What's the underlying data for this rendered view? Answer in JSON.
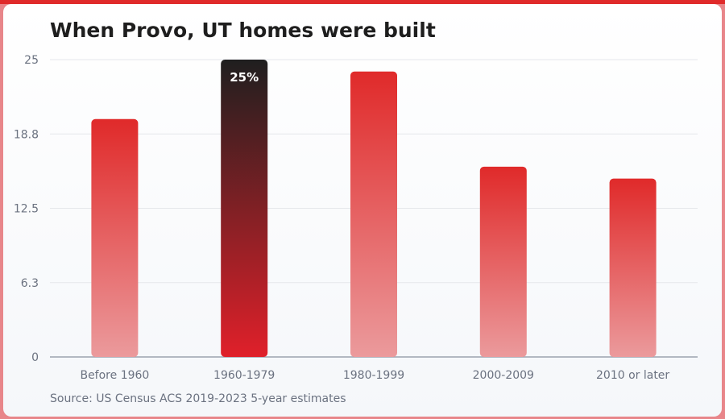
{
  "chart_data": {
    "type": "bar",
    "title": "When Provo, UT homes were built",
    "source": "Source: US Census ACS 2019-2023 5-year estimates",
    "categories": [
      "Before 1960",
      "1960-1979",
      "1980-1999",
      "2000-2009",
      "2010 or later"
    ],
    "values": [
      20,
      25,
      24,
      16,
      15
    ],
    "highlight_index": 1,
    "data_labels": {
      "1": "25%"
    },
    "y_ticks": [
      "0",
      "6.3",
      "12.5",
      "18.8",
      "25"
    ],
    "ylim": [
      0,
      25
    ],
    "grid": true,
    "colors": {
      "bar_top": "#e02a2a",
      "bar_bottom": "#eb9a9c",
      "highlight_top": "#1f1f1f",
      "highlight_bottom": "#e0202a",
      "grid": "#e5e7eb",
      "axis": "#9ca3af"
    }
  }
}
